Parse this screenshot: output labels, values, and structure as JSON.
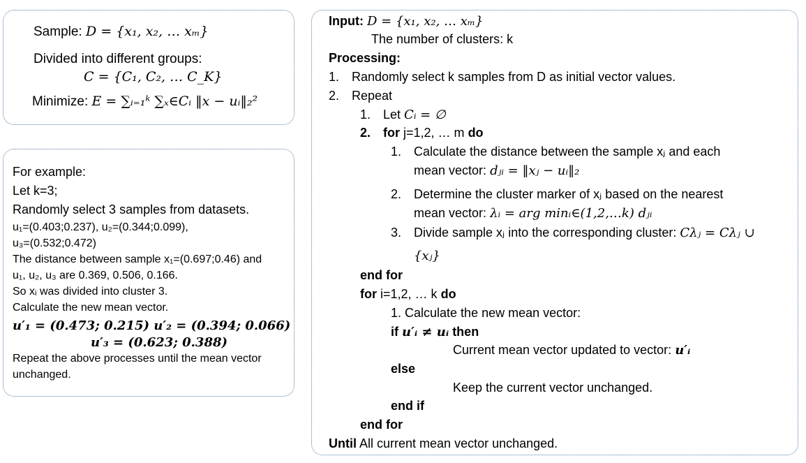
{
  "box1": {
    "sample_label": "Sample:",
    "sample_math": "D = {x₁, x₂, … xₘ}",
    "groups_label": "Divided into different groups:",
    "c_math": "C = {C₁, C₂, … C_K}",
    "minimize_label": "Minimize:",
    "minimize_math": "E = ∑ᵢ₌₁ᵏ ∑ₓ∈Cᵢ ‖x − uᵢ‖₂²"
  },
  "box2": {
    "title": "For example:",
    "let_k": "Let k=3;",
    "random_select": "Randomly select 3 samples from datasets.",
    "u1u2": "u₁=(0.403;0.237), u₂=(0.344;0.099),",
    "u3": "u₃=(0.532;0.472)",
    "distance_line1": "The distance between sample x₁=(0.697;0.46) and",
    "distance_line2": "u₁, u₂, u₃ are 0.369, 0.506, 0.166.",
    "divided": "So xᵢ was divided into cluster 3.",
    "calc_mean": "Calculate the new mean vector.",
    "new_u1u2": "u′₁ = (0.473; 0.215) u′₂ = (0.394; 0.066)",
    "new_u3": "u′₃ = (0.623; 0.388)",
    "repeat_line1": "Repeat the above processes until the mean vector",
    "repeat_line2": "unchanged."
  },
  "algo": {
    "input_label": "Input:",
    "input_math": "D = {x₁, x₂, … xₘ}",
    "num_clusters": "The number of clusters: k",
    "processing": "Processing:",
    "step1_num": "1.",
    "step1": "Randomly select k samples from D as initial vector values.",
    "step2_num": "2.",
    "step2": "Repeat",
    "s21_num": "1.",
    "s21_text": "Let",
    "s21_math": "Cᵢ = ∅",
    "s22_num": "2.",
    "s22_for": "for",
    "s22_range": "j=1,2, … m",
    "s22_do": "do",
    "a1_num": "1.",
    "a1_line1": "Calculate the distance between the sample xⱼ and each",
    "a1_line2": "mean vector:",
    "a1_math": "dⱼᵢ = ‖xⱼ − uᵢ‖₂",
    "a2_num": "2.",
    "a2_line1": "Determine the cluster marker of xⱼ based on the nearest",
    "a2_line2": "mean vector:",
    "a2_math": "λᵢ = arg minᵢ∈(1,2,…k) dⱼᵢ",
    "a3_num": "3.",
    "a3_line1": "Divide sample xⱼ into the corresponding cluster:",
    "a3_math1": "Cλⱼ = Cλⱼ ∪",
    "a3_math2": "{xⱼ}",
    "end_for1": "end for",
    "for2": "for",
    "for2_range": "i=1,2, … k",
    "for2_do": "do",
    "b1": "1. Calculate the new mean vector:",
    "if_kw": "if",
    "if_cond": "u′ᵢ ≠ uᵢ",
    "then_kw": "then",
    "update_text": "Current mean vector updated to vector:",
    "update_math": "u′ᵢ",
    "else_kw": "else",
    "keep_text": "Keep the current vector unchanged.",
    "end_if": "end if",
    "end_for2": "end for",
    "until_kw": "Until",
    "until_text": "All current mean vector unchanged."
  }
}
